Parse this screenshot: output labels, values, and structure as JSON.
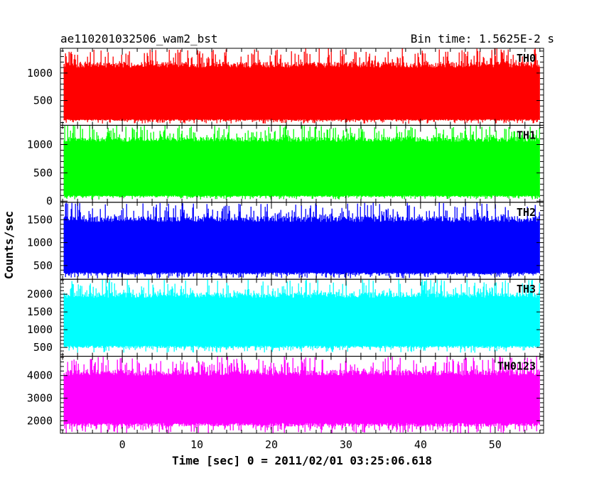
{
  "header": {
    "title": "ae110201032506_wam2_bst",
    "bin_time": "Bin time: 1.5625E-2 s"
  },
  "axes": {
    "xlabel": "Time [sec] 0 = 2011/02/01 03:25:06.618",
    "ylabel": "Counts/sec"
  },
  "chart_data": {
    "type": "line",
    "xlabel": "Time [sec] 0 = 2011/02/01 03:25:06.618",
    "ylabel": "Counts/sec",
    "xlim": [
      -8.3,
      56.5
    ],
    "x_ticks": [
      0,
      10,
      20,
      30,
      40,
      50
    ],
    "data_x_range": [
      -7.8,
      56.0
    ],
    "bin_time_s": 0.015625,
    "panels": [
      {
        "name": "TH0",
        "color": "#ff0000",
        "ylim": [
          50,
          1450
        ],
        "y_ticks": [
          500,
          1000
        ],
        "baseline_low": 160,
        "baseline_high": 1100,
        "trace_min": 80,
        "trace_max": 1450
      },
      {
        "name": "TH1",
        "color": "#00ff00",
        "ylim": [
          -20,
          1340
        ],
        "y_ticks": [
          0,
          500,
          1000
        ],
        "baseline_low": 100,
        "baseline_high": 1050,
        "trace_min": 30,
        "trace_max": 1340
      },
      {
        "name": "TH2",
        "color": "#0000ff",
        "ylim": [
          200,
          1880
        ],
        "y_ticks": [
          500,
          1000,
          1500
        ],
        "baseline_low": 350,
        "baseline_high": 1450,
        "trace_min": 220,
        "trace_max": 1880
      },
      {
        "name": "TH3",
        "color": "#00ffff",
        "ylim": [
          250,
          2420
        ],
        "y_ticks": [
          500,
          1000,
          1500,
          2000
        ],
        "baseline_low": 550,
        "baseline_high": 1900,
        "trace_min": 350,
        "trace_max": 2420
      },
      {
        "name": "TH0123",
        "color": "#ff00ff",
        "ylim": [
          1450,
          4850
        ],
        "y_ticks": [
          2000,
          3000,
          4000
        ],
        "baseline_low": 1900,
        "baseline_high": 4000,
        "trace_min": 1450,
        "trace_max": 4850
      }
    ]
  }
}
